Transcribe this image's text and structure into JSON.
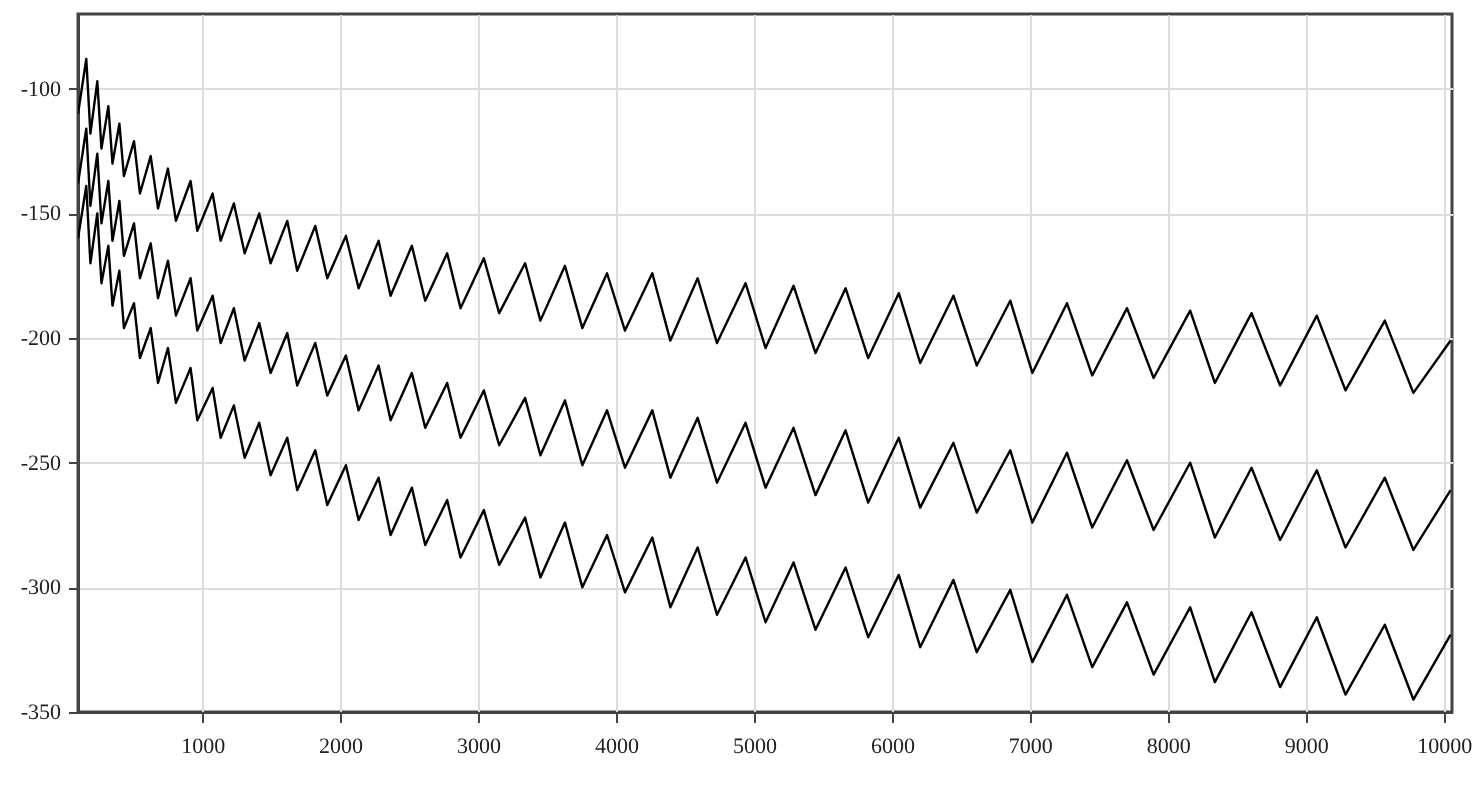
{
  "chart_data": {
    "type": "line",
    "x": [
      100,
      160,
      190,
      240,
      270,
      320,
      350,
      400,
      433,
      506,
      549,
      627,
      680,
      752,
      810,
      916,
      965,
      1076,
      1134,
      1230,
      1308,
      1414,
      1496,
      1617,
      1689,
      1820,
      1907,
      2042,
      2134,
      2279,
      2366,
      2520,
      2617,
      2776,
      2873,
      3042,
      3153,
      3341,
      3452,
      3630,
      3756,
      3935,
      4065,
      4263,
      4394,
      4592,
      4732,
      4939,
      5084,
      5287,
      5446,
      5664,
      5828,
      6050,
      6205,
      6446,
      6615,
      6858,
      7018,
      7269,
      7452,
      7704,
      7897,
      8162,
      8341,
      8607,
      8814,
      9080,
      9288,
      9573,
      9780,
      10050
    ],
    "series": [
      {
        "color": "#000000",
        "values": [
          -110,
          -88,
          -118,
          -97,
          -124,
          -107,
          -130,
          -114,
          -135,
          -121,
          -142,
          -127,
          -148,
          -132,
          -153,
          -137,
          -157,
          -142,
          -161,
          -146,
          -166,
          -150,
          -170,
          -153,
          -173,
          -155,
          -176,
          -159,
          -180,
          -161,
          -183,
          -163,
          -185,
          -166,
          -188,
          -168,
          -190,
          -170,
          -193,
          -171,
          -196,
          -174,
          -197,
          -174,
          -201,
          -176,
          -202,
          -178,
          -204,
          -179,
          -206,
          -180,
          -208,
          -182,
          -210,
          -183,
          -211,
          -185,
          -214,
          -186,
          -215,
          -188,
          -216,
          -189,
          -218,
          -190,
          -219,
          -191,
          -221,
          -193,
          -222,
          -201
        ]
      },
      {
        "color": "#000000",
        "values": [
          -138,
          -116,
          -147,
          -126,
          -154,
          -137,
          -161,
          -145,
          -167,
          -154,
          -176,
          -162,
          -184,
          -169,
          -191,
          -176,
          -197,
          -183,
          -202,
          -188,
          -209,
          -194,
          -214,
          -198,
          -219,
          -202,
          -223,
          -207,
          -229,
          -211,
          -233,
          -214,
          -236,
          -218,
          -240,
          -221,
          -243,
          -224,
          -247,
          -225,
          -251,
          -229,
          -252,
          -229,
          -256,
          -232,
          -258,
          -234,
          -260,
          -236,
          -263,
          -237,
          -266,
          -240,
          -268,
          -242,
          -270,
          -245,
          -274,
          -246,
          -276,
          -249,
          -277,
          -250,
          -280,
          -252,
          -281,
          -253,
          -284,
          -256,
          -285,
          -261
        ]
      },
      {
        "color": "#000000",
        "values": [
          -160,
          -139,
          -170,
          -150,
          -178,
          -163,
          -187,
          -173,
          -196,
          -186,
          -208,
          -196,
          -218,
          -204,
          -226,
          -212,
          -233,
          -220,
          -240,
          -227,
          -248,
          -234,
          -255,
          -240,
          -261,
          -245,
          -267,
          -251,
          -273,
          -256,
          -279,
          -260,
          -283,
          -265,
          -288,
          -269,
          -291,
          -272,
          -296,
          -274,
          -300,
          -279,
          -302,
          -280,
          -308,
          -284,
          -311,
          -288,
          -314,
          -290,
          -317,
          -292,
          -320,
          -295,
          -324,
          -297,
          -326,
          -301,
          -330,
          -303,
          -332,
          -306,
          -335,
          -308,
          -338,
          -310,
          -340,
          -312,
          -343,
          -315,
          -345,
          -319
        ]
      }
    ],
    "xlim": [
      100,
      10060
    ],
    "ylim": [
      -350,
      -70
    ],
    "xticks": [
      1000,
      2000,
      3000,
      4000,
      5000,
      6000,
      7000,
      8000,
      9000,
      10000
    ],
    "yticks": [
      -350,
      -300,
      -250,
      -200,
      -150,
      -100
    ],
    "grid": true
  }
}
